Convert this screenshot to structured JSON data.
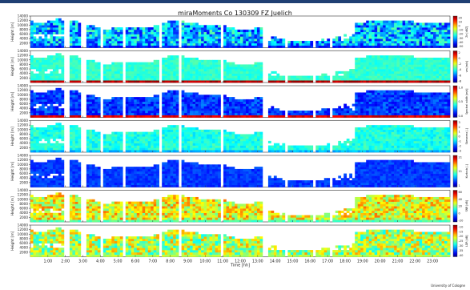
{
  "title": "miraMoments Co 130309 FZ Juelich",
  "credit": "University of Cologne",
  "chart_data": {
    "type": "heatmap",
    "title": "miraMoments Co 130309 FZ Juelich",
    "xlabel": "Time [hh]",
    "ylabel": "Height [m]",
    "xlim": [
      0,
      24
    ],
    "ylim": [
      0,
      14000
    ],
    "x_ticks": [
      "1:00",
      "2:00",
      "3:00",
      "4:00",
      "5:00",
      "6:00",
      "7:00",
      "8:00",
      "9:00",
      "10:00",
      "11:00",
      "12:00",
      "13:00",
      "14:00",
      "15:00",
      "16:00",
      "17:00",
      "18:00",
      "19:00",
      "20:00",
      "21:00",
      "22:00",
      "23:00"
    ],
    "y_ticks": [
      "2000",
      "4000",
      "6000",
      "8000",
      "10000",
      "12000",
      "14000"
    ],
    "panels": [
      {
        "colorbar_label": "Ze [dBZ]",
        "ticks": [
          "20",
          "10",
          "0",
          "-10",
          "-20",
          "-30",
          "-40",
          "-50"
        ],
        "colormap": "jet-reversed"
      },
      {
        "colorbar_label": "vm [m/s]",
        "ticks": [
          "2",
          "0",
          "-2",
          "-4",
          "-6",
          "-8"
        ],
        "colormap": "jet-reversed"
      },
      {
        "colorbar_label": "Spectral width [m/s]",
        "ticks": [
          "1.0",
          "0.5",
          "0.0"
        ],
        "colormap": "jet-reversed"
      },
      {
        "colorbar_label": "Skewness [-]",
        "ticks": [
          "3",
          "2",
          "1",
          "0",
          "-1",
          "-2",
          "-3"
        ],
        "colormap": "jet-reversed"
      },
      {
        "colorbar_label": "Kurtosis [-]",
        "ticks": [
          "21",
          "11",
          "1"
        ],
        "colormap": "jet-reversed"
      },
      {
        "colorbar_label": "SNR [dB]",
        "ticks": [
          "60",
          "40",
          "20",
          "0",
          "-20"
        ],
        "colormap": "jet-reversed"
      },
      {
        "colorbar_label": "LDR [dB]",
        "ticks": [
          "-10",
          "-15",
          "-20",
          "-25",
          "-30",
          "-35",
          "-40"
        ],
        "colormap": "jet-reversed"
      }
    ]
  }
}
